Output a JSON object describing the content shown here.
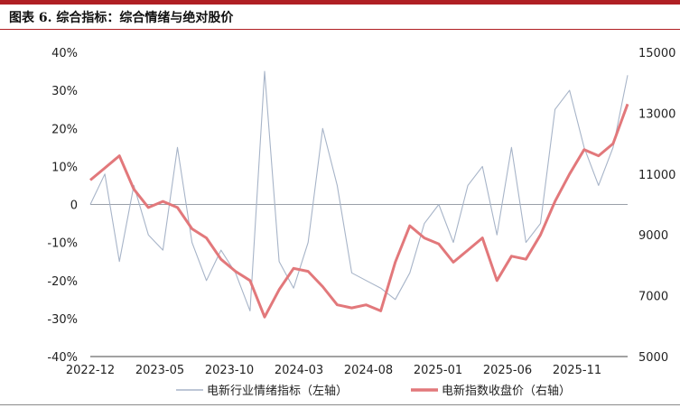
{
  "title": "图表 6. 综合指标：综合情绪与绝对股价",
  "chart_data": {
    "type": "line",
    "x_tick_labels": [
      "2022-12",
      "2023-05",
      "2023-10",
      "2024-03",
      "2024-08",
      "2025-01",
      "2025-06",
      "2025-11"
    ],
    "y_left": {
      "ticks": [
        40,
        30,
        20,
        10,
        0,
        -10,
        -20,
        -30,
        -40
      ],
      "tick_labels": [
        "40%",
        "30%",
        "20%",
        "10%",
        "0",
        "-10%",
        "-20%",
        "-30%",
        "-40%"
      ],
      "ylim": [
        -40,
        40
      ]
    },
    "y_right": {
      "ticks": [
        15000,
        13000,
        11000,
        9000,
        7000,
        5000
      ],
      "tick_labels": [
        "15000",
        "13000",
        "11000",
        "9000",
        "7000",
        "5000"
      ],
      "ylim": [
        5000,
        15000
      ]
    },
    "grid": false,
    "legend_position": "bottom",
    "series": [
      {
        "name": "电新行业情绪指标（左轴）",
        "axis": "left",
        "color": "#a7b4c8",
        "x": [
          "2022-12",
          "2023-01",
          "2023-02",
          "2023-03",
          "2023-04",
          "2023-05",
          "2023-06",
          "2023-07",
          "2023-08",
          "2023-09",
          "2023-10",
          "2023-11",
          "2023-12",
          "2024-01",
          "2024-02",
          "2024-03",
          "2024-04",
          "2024-05",
          "2024-06",
          "2024-07",
          "2024-08",
          "2024-09",
          "2024-10",
          "2024-11",
          "2024-12",
          "2025-01",
          "2025-02",
          "2025-03",
          "2025-04",
          "2025-05",
          "2025-06",
          "2025-07",
          "2025-08",
          "2025-09",
          "2025-10",
          "2025-11",
          "2025-12",
          "2026-01"
        ],
        "values": [
          0,
          8,
          -15,
          5,
          -8,
          -12,
          15,
          -10,
          -20,
          -12,
          -18,
          -28,
          35,
          -15,
          -22,
          -10,
          20,
          5,
          -18,
          -20,
          -22,
          -25,
          -18,
          -5,
          0,
          -10,
          5,
          10,
          -8,
          15,
          -10,
          -5,
          25,
          30,
          15,
          5,
          15,
          34
        ]
      },
      {
        "name": "电新指数收盘价（右轴）",
        "axis": "right",
        "color": "#e2787b",
        "x": [
          "2022-12",
          "2023-01",
          "2023-02",
          "2023-03",
          "2023-04",
          "2023-05",
          "2023-06",
          "2023-07",
          "2023-08",
          "2023-09",
          "2023-10",
          "2023-11",
          "2023-12",
          "2024-01",
          "2024-02",
          "2024-03",
          "2024-04",
          "2024-05",
          "2024-06",
          "2024-07",
          "2024-08",
          "2024-09",
          "2024-10",
          "2024-11",
          "2024-12",
          "2025-01",
          "2025-02",
          "2025-03",
          "2025-04",
          "2025-05",
          "2025-06",
          "2025-07",
          "2025-08",
          "2025-09",
          "2025-10",
          "2025-11",
          "2025-12",
          "2026-01"
        ],
        "values": [
          10800,
          11200,
          11600,
          10500,
          9900,
          10100,
          9900,
          9200,
          8900,
          8200,
          7800,
          7500,
          6300,
          7200,
          7900,
          7800,
          7300,
          6700,
          6600,
          6700,
          6500,
          8100,
          9300,
          8900,
          8700,
          8100,
          8500,
          8900,
          7500,
          8300,
          8200,
          9000,
          10100,
          11000,
          11800,
          11600,
          12000,
          13300
        ]
      }
    ]
  }
}
